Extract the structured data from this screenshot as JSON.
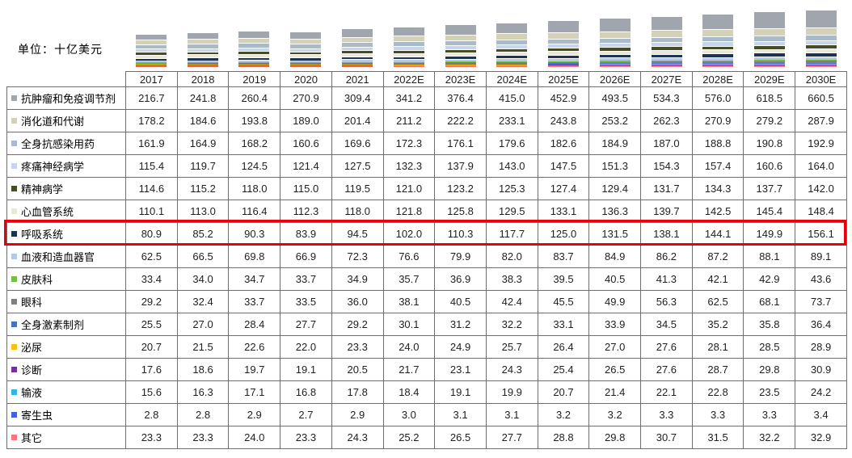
{
  "unit_label": "单位：十亿美元",
  "highlight": {
    "row_label": "呼吸系统",
    "box_color": "#e8000b"
  },
  "chart_data": {
    "type": "bar",
    "stacked": true,
    "title": "",
    "ylabel": "单位：十亿美元",
    "legend_position": "row-labels-left",
    "grid": false,
    "categories": [
      "2017",
      "2018",
      "2019",
      "2020",
      "2021",
      "2022E",
      "2023E",
      "2024E",
      "2025E",
      "2026E",
      "2027E",
      "2028E",
      "2029E",
      "2030E"
    ],
    "series": [
      {
        "name": "抗肿瘤和免疫调节剂",
        "color": "#a1a6ae",
        "values": [
          216.7,
          241.8,
          260.4,
          270.9,
          309.4,
          341.2,
          376.4,
          415.0,
          452.9,
          493.5,
          534.3,
          576.0,
          618.5,
          660.5
        ]
      },
      {
        "name": "消化道和代谢",
        "color": "#d3d2b9",
        "values": [
          178.2,
          184.6,
          193.8,
          189.0,
          201.4,
          211.2,
          222.2,
          233.1,
          243.8,
          253.2,
          262.3,
          270.9,
          279.2,
          287.9
        ]
      },
      {
        "name": "全身抗感染用药",
        "color": "#a9bacb",
        "values": [
          161.9,
          164.9,
          168.2,
          160.6,
          169.6,
          172.3,
          176.1,
          179.6,
          182.6,
          184.9,
          187.0,
          188.8,
          190.8,
          192.9
        ]
      },
      {
        "name": "疼痛神经病学",
        "color": "#c6d6e8",
        "values": [
          115.4,
          119.7,
          124.5,
          121.4,
          127.5,
          132.3,
          137.9,
          143.0,
          147.5,
          151.3,
          154.3,
          157.4,
          160.6,
          164.0
        ]
      },
      {
        "name": "精神病学",
        "color": "#474c26",
        "values": [
          114.6,
          115.2,
          118.0,
          115.0,
          119.5,
          121.0,
          123.2,
          125.3,
          127.4,
          129.4,
          131.7,
          134.3,
          137.7,
          142.0
        ]
      },
      {
        "name": "心血管系统",
        "color": "#e9e8d8",
        "values": [
          110.1,
          113.0,
          116.4,
          112.3,
          118.0,
          121.8,
          125.8,
          129.5,
          133.1,
          136.3,
          139.7,
          142.5,
          145.4,
          148.4
        ]
      },
      {
        "name": "呼吸系统",
        "color": "#1e3253",
        "values": [
          80.9,
          85.2,
          90.3,
          83.9,
          94.5,
          102.0,
          110.3,
          117.7,
          125.0,
          131.5,
          138.1,
          144.1,
          149.9,
          156.1
        ]
      },
      {
        "name": "血液和造血器官",
        "color": "#b7c9e0",
        "values": [
          62.5,
          66.5,
          69.8,
          66.9,
          72.3,
          76.6,
          79.9,
          82.0,
          83.7,
          84.9,
          86.2,
          87.2,
          88.1,
          89.1
        ]
      },
      {
        "name": "皮肤科",
        "color": "#72bf44",
        "values": [
          33.4,
          34.0,
          34.7,
          33.7,
          34.9,
          35.7,
          36.9,
          38.3,
          39.5,
          40.5,
          41.3,
          42.1,
          42.9,
          43.6
        ]
      },
      {
        "name": "眼科",
        "color": "#7f7f7f",
        "values": [
          29.2,
          32.4,
          33.7,
          33.5,
          36.0,
          38.1,
          40.5,
          42.4,
          45.5,
          49.9,
          56.3,
          62.5,
          68.1,
          73.7
        ]
      },
      {
        "name": "全身激素制剂",
        "color": "#4472c4",
        "values": [
          25.5,
          27.0,
          28.4,
          27.7,
          29.2,
          30.1,
          31.2,
          32.2,
          33.1,
          33.9,
          34.5,
          35.2,
          35.8,
          36.4
        ]
      },
      {
        "name": "泌尿",
        "color": "#fdc010",
        "values": [
          20.7,
          21.5,
          22.6,
          22.0,
          23.3,
          24.0,
          24.9,
          25.7,
          26.4,
          27.0,
          27.6,
          28.1,
          28.5,
          28.9
        ]
      },
      {
        "name": "诊断",
        "color": "#7030a0",
        "values": [
          17.6,
          18.6,
          19.7,
          19.1,
          20.5,
          21.7,
          23.1,
          24.3,
          25.4,
          26.5,
          27.6,
          28.7,
          29.8,
          30.9
        ]
      },
      {
        "name": "输液",
        "color": "#35b5e5",
        "values": [
          15.6,
          16.3,
          17.1,
          16.8,
          17.8,
          18.4,
          19.1,
          19.9,
          20.7,
          21.4,
          22.1,
          22.8,
          23.5,
          24.2
        ]
      },
      {
        "name": "寄生虫",
        "color": "#4064d9",
        "values": [
          2.8,
          2.8,
          2.9,
          2.7,
          2.9,
          3.0,
          3.1,
          3.1,
          3.2,
          3.2,
          3.3,
          3.3,
          3.3,
          3.4
        ]
      },
      {
        "name": "其它",
        "color": "#f4787e",
        "values": [
          23.3,
          23.3,
          24.0,
          23.3,
          24.3,
          25.2,
          26.5,
          27.7,
          28.8,
          29.8,
          30.7,
          31.5,
          32.2,
          32.9
        ]
      }
    ]
  }
}
